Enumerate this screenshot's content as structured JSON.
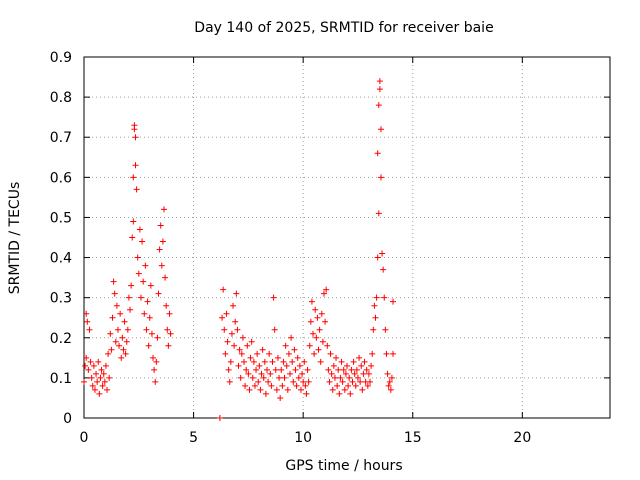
{
  "chart_data": {
    "type": "scatter",
    "title": "Day 140 of 2025, SRMTID for receiver baie",
    "xlabel": "GPS time / hours",
    "ylabel": "SRMTID / TECUs",
    "xlim": [
      0,
      24
    ],
    "ylim": [
      0,
      0.9
    ],
    "xticks": [
      0,
      5,
      10,
      15,
      20
    ],
    "yticks": [
      0,
      0.1,
      0.2,
      0.3,
      0.4,
      0.5,
      0.6,
      0.7,
      0.8,
      0.9
    ],
    "ytick_labels": [
      "0",
      "0.1",
      "0.2",
      "0.3",
      "0.4",
      "0.5",
      "0.6",
      "0.7",
      "0.8",
      "0.9"
    ],
    "grid": true,
    "marker": "plus",
    "color": "#ff0000",
    "series": [
      {
        "name": "SRMTID",
        "points": [
          [
            0.0,
            0.09
          ],
          [
            0.05,
            0.13
          ],
          [
            0.1,
            0.15
          ],
          [
            0.1,
            0.26
          ],
          [
            0.15,
            0.24
          ],
          [
            0.2,
            0.12
          ],
          [
            0.25,
            0.22
          ],
          [
            0.3,
            0.14
          ],
          [
            0.35,
            0.1
          ],
          [
            0.4,
            0.08
          ],
          [
            0.45,
            0.13
          ],
          [
            0.5,
            0.07
          ],
          [
            0.55,
            0.11
          ],
          [
            0.6,
            0.09
          ],
          [
            0.65,
            0.14
          ],
          [
            0.7,
            0.06
          ],
          [
            0.75,
            0.1
          ],
          [
            0.8,
            0.12
          ],
          [
            0.85,
            0.08
          ],
          [
            0.9,
            0.11
          ],
          [
            0.95,
            0.09
          ],
          [
            1.0,
            0.13
          ],
          [
            1.05,
            0.07
          ],
          [
            1.1,
            0.16
          ],
          [
            1.15,
            0.1
          ],
          [
            1.2,
            0.21
          ],
          [
            1.25,
            0.17
          ],
          [
            1.3,
            0.25
          ],
          [
            1.35,
            0.34
          ],
          [
            1.4,
            0.31
          ],
          [
            1.45,
            0.19
          ],
          [
            1.5,
            0.28
          ],
          [
            1.55,
            0.22
          ],
          [
            1.6,
            0.18
          ],
          [
            1.65,
            0.26
          ],
          [
            1.7,
            0.15
          ],
          [
            1.75,
            0.2
          ],
          [
            1.8,
            0.17
          ],
          [
            1.85,
            0.24
          ],
          [
            1.9,
            0.16
          ],
          [
            1.95,
            0.19
          ],
          [
            2.0,
            0.22
          ],
          [
            2.05,
            0.3
          ],
          [
            2.1,
            0.27
          ],
          [
            2.15,
            0.33
          ],
          [
            2.2,
            0.45
          ],
          [
            2.25,
            0.49
          ],
          [
            2.25,
            0.6
          ],
          [
            2.3,
            0.73
          ],
          [
            2.3,
            0.72
          ],
          [
            2.35,
            0.7
          ],
          [
            2.35,
            0.63
          ],
          [
            2.4,
            0.57
          ],
          [
            2.45,
            0.4
          ],
          [
            2.5,
            0.36
          ],
          [
            2.55,
            0.47
          ],
          [
            2.6,
            0.3
          ],
          [
            2.65,
            0.44
          ],
          [
            2.7,
            0.34
          ],
          [
            2.75,
            0.26
          ],
          [
            2.8,
            0.38
          ],
          [
            2.85,
            0.22
          ],
          [
            2.9,
            0.29
          ],
          [
            2.95,
            0.18
          ],
          [
            3.0,
            0.25
          ],
          [
            3.05,
            0.33
          ],
          [
            3.1,
            0.21
          ],
          [
            3.15,
            0.15
          ],
          [
            3.2,
            0.12
          ],
          [
            3.25,
            0.09
          ],
          [
            3.3,
            0.14
          ],
          [
            3.35,
            0.2
          ],
          [
            3.4,
            0.31
          ],
          [
            3.45,
            0.42
          ],
          [
            3.5,
            0.48
          ],
          [
            3.55,
            0.38
          ],
          [
            3.6,
            0.44
          ],
          [
            3.65,
            0.52
          ],
          [
            3.7,
            0.35
          ],
          [
            3.75,
            0.28
          ],
          [
            3.8,
            0.22
          ],
          [
            3.85,
            0.18
          ],
          [
            3.9,
            0.26
          ],
          [
            3.95,
            0.21
          ],
          [
            6.2,
            0.0
          ],
          [
            6.3,
            0.25
          ],
          [
            6.35,
            0.32
          ],
          [
            6.4,
            0.22
          ],
          [
            6.45,
            0.16
          ],
          [
            6.5,
            0.26
          ],
          [
            6.55,
            0.19
          ],
          [
            6.6,
            0.12
          ],
          [
            6.65,
            0.09
          ],
          [
            6.7,
            0.14
          ],
          [
            6.75,
            0.21
          ],
          [
            6.8,
            0.28
          ],
          [
            6.85,
            0.18
          ],
          [
            6.9,
            0.24
          ],
          [
            6.95,
            0.31
          ],
          [
            7.0,
            0.22
          ],
          [
            7.05,
            0.13
          ],
          [
            7.1,
            0.17
          ],
          [
            7.15,
            0.1
          ],
          [
            7.2,
            0.16
          ],
          [
            7.25,
            0.2
          ],
          [
            7.3,
            0.14
          ],
          [
            7.35,
            0.08
          ],
          [
            7.4,
            0.12
          ],
          [
            7.45,
            0.18
          ],
          [
            7.5,
            0.11
          ],
          [
            7.55,
            0.07
          ],
          [
            7.6,
            0.15
          ],
          [
            7.65,
            0.19
          ],
          [
            7.7,
            0.1
          ],
          [
            7.75,
            0.14
          ],
          [
            7.8,
            0.08
          ],
          [
            7.85,
            0.12
          ],
          [
            7.9,
            0.16
          ],
          [
            7.95,
            0.09
          ],
          [
            8.0,
            0.13
          ],
          [
            8.05,
            0.07
          ],
          [
            8.1,
            0.11
          ],
          [
            8.15,
            0.17
          ],
          [
            8.2,
            0.1
          ],
          [
            8.25,
            0.14
          ],
          [
            8.3,
            0.06
          ],
          [
            8.35,
            0.12
          ],
          [
            8.4,
            0.09
          ],
          [
            8.45,
            0.16
          ],
          [
            8.5,
            0.11
          ],
          [
            8.55,
            0.08
          ],
          [
            8.6,
            0.14
          ],
          [
            8.65,
            0.3
          ],
          [
            8.7,
            0.22
          ],
          [
            8.75,
            0.12
          ],
          [
            8.8,
            0.07
          ],
          [
            8.85,
            0.15
          ],
          [
            8.9,
            0.1
          ],
          [
            8.95,
            0.05
          ],
          [
            9.0,
            0.12
          ],
          [
            9.05,
            0.08
          ],
          [
            9.1,
            0.14
          ],
          [
            9.15,
            0.1
          ],
          [
            9.2,
            0.18
          ],
          [
            9.25,
            0.13
          ],
          [
            9.3,
            0.07
          ],
          [
            9.35,
            0.16
          ],
          [
            9.4,
            0.11
          ],
          [
            9.45,
            0.2
          ],
          [
            9.5,
            0.14
          ],
          [
            9.55,
            0.09
          ],
          [
            9.6,
            0.17
          ],
          [
            9.65,
            0.12
          ],
          [
            9.7,
            0.08
          ],
          [
            9.75,
            0.15
          ],
          [
            9.8,
            0.1
          ],
          [
            9.85,
            0.13
          ],
          [
            9.9,
            0.07
          ],
          [
            9.95,
            0.11
          ],
          [
            10.0,
            0.09
          ],
          [
            10.05,
            0.14
          ],
          [
            10.1,
            0.08
          ],
          [
            10.15,
            0.06
          ],
          [
            10.2,
            0.12
          ],
          [
            10.25,
            0.09
          ],
          [
            10.3,
            0.18
          ],
          [
            10.35,
            0.24
          ],
          [
            10.4,
            0.29
          ],
          [
            10.45,
            0.21
          ],
          [
            10.5,
            0.16
          ],
          [
            10.55,
            0.27
          ],
          [
            10.6,
            0.2
          ],
          [
            10.65,
            0.25
          ],
          [
            10.7,
            0.17
          ],
          [
            10.75,
            0.22
          ],
          [
            10.8,
            0.14
          ],
          [
            10.85,
            0.26
          ],
          [
            10.9,
            0.19
          ],
          [
            10.95,
            0.31
          ],
          [
            11.0,
            0.24
          ],
          [
            11.05,
            0.32
          ],
          [
            11.1,
            0.18
          ],
          [
            11.15,
            0.12
          ],
          [
            11.2,
            0.09
          ],
          [
            11.25,
            0.16
          ],
          [
            11.3,
            0.11
          ],
          [
            11.35,
            0.07
          ],
          [
            11.4,
            0.13
          ],
          [
            11.45,
            0.1
          ],
          [
            11.5,
            0.15
          ],
          [
            11.55,
            0.08
          ],
          [
            11.6,
            0.12
          ],
          [
            11.65,
            0.06
          ],
          [
            11.7,
            0.1
          ],
          [
            11.75,
            0.14
          ],
          [
            11.8,
            0.09
          ],
          [
            11.85,
            0.12
          ],
          [
            11.9,
            0.07
          ],
          [
            11.95,
            0.11
          ],
          [
            12.0,
            0.13
          ],
          [
            12.05,
            0.08
          ],
          [
            12.1,
            0.1
          ],
          [
            12.15,
            0.06
          ],
          [
            12.2,
            0.12
          ],
          [
            12.25,
            0.09
          ],
          [
            12.3,
            0.14
          ],
          [
            12.35,
            0.11
          ],
          [
            12.4,
            0.08
          ],
          [
            12.45,
            0.12
          ],
          [
            12.5,
            0.1
          ],
          [
            12.55,
            0.15
          ],
          [
            12.6,
            0.09
          ],
          [
            12.65,
            0.13
          ],
          [
            12.7,
            0.07
          ],
          [
            12.75,
            0.11
          ],
          [
            12.8,
            0.14
          ],
          [
            12.85,
            0.09
          ],
          [
            12.9,
            0.12
          ],
          [
            12.95,
            0.08
          ],
          [
            13.0,
            0.11
          ],
          [
            13.05,
            0.09
          ],
          [
            13.1,
            0.13
          ],
          [
            13.15,
            0.16
          ],
          [
            13.2,
            0.22
          ],
          [
            13.25,
            0.28
          ],
          [
            13.3,
            0.25
          ],
          [
            13.35,
            0.3
          ],
          [
            13.4,
            0.4
          ],
          [
            13.4,
            0.66
          ],
          [
            13.45,
            0.51
          ],
          [
            13.45,
            0.78
          ],
          [
            13.5,
            0.84
          ],
          [
            13.5,
            0.82
          ],
          [
            13.55,
            0.72
          ],
          [
            13.55,
            0.6
          ],
          [
            13.6,
            0.41
          ],
          [
            13.65,
            0.37
          ],
          [
            13.7,
            0.3
          ],
          [
            13.75,
            0.22
          ],
          [
            13.8,
            0.16
          ],
          [
            13.85,
            0.11
          ],
          [
            13.9,
            0.08
          ],
          [
            13.95,
            0.09
          ],
          [
            14.0,
            0.07
          ],
          [
            14.05,
            0.1
          ],
          [
            14.1,
            0.16
          ],
          [
            14.1,
            0.29
          ]
        ]
      }
    ]
  }
}
